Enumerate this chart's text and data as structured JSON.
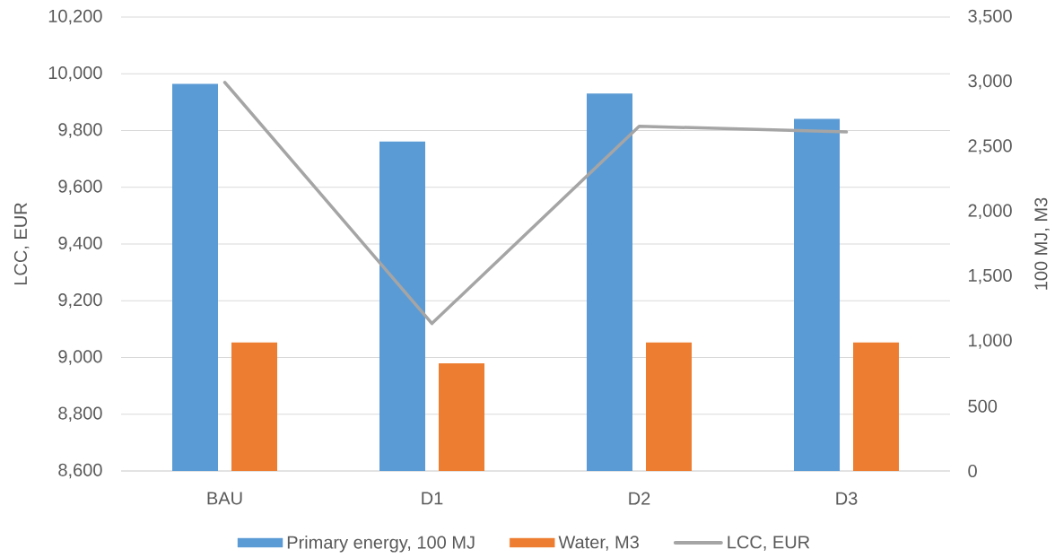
{
  "chart_data": {
    "type": "bar",
    "categories": [
      "BAU",
      "D1",
      "D2",
      "D3"
    ],
    "ylabel": "LCC, EUR",
    "y2label": "100 MJ, M3",
    "ylim": [
      8600,
      10200
    ],
    "yticks": [
      {
        "value": 8600,
        "label": "8,600"
      },
      {
        "value": 8800,
        "label": "8,800"
      },
      {
        "value": 9000,
        "label": "9,000"
      },
      {
        "value": 9200,
        "label": "9,200"
      },
      {
        "value": 9400,
        "label": "9,400"
      },
      {
        "value": 9600,
        "label": "9,600"
      },
      {
        "value": 9800,
        "label": "9,800"
      },
      {
        "value": 10000,
        "label": "10,000"
      },
      {
        "value": 10200,
        "label": "10,200"
      }
    ],
    "y2lim": [
      0,
      3500
    ],
    "y2ticks": [
      0,
      500,
      {
        "value": 1000,
        "label": "1,000"
      },
      {
        "value": 1500,
        "label": "1,500"
      },
      {
        "value": 2000,
        "label": "2,000"
      },
      {
        "value": 2500,
        "label": "2,500"
      },
      {
        "value": 3000,
        "label": "3,000"
      },
      {
        "value": 3500,
        "label": "3,500"
      }
    ],
    "series": [
      {
        "name": "Primary energy, 100 MJ",
        "color": "#5b9bd5",
        "axis": "y2",
        "values": [
          2985,
          2540,
          2910,
          2715
        ]
      },
      {
        "name": "Water, M3",
        "color": "#ed7d31",
        "axis": "y2",
        "values": [
          990,
          830,
          990,
          990
        ]
      },
      {
        "name": "LCC, EUR",
        "type": "line",
        "color": "#a5a5a5",
        "values": [
          9970,
          9120,
          9815,
          9795
        ]
      }
    ],
    "grid": "y",
    "legend": "bottom"
  }
}
